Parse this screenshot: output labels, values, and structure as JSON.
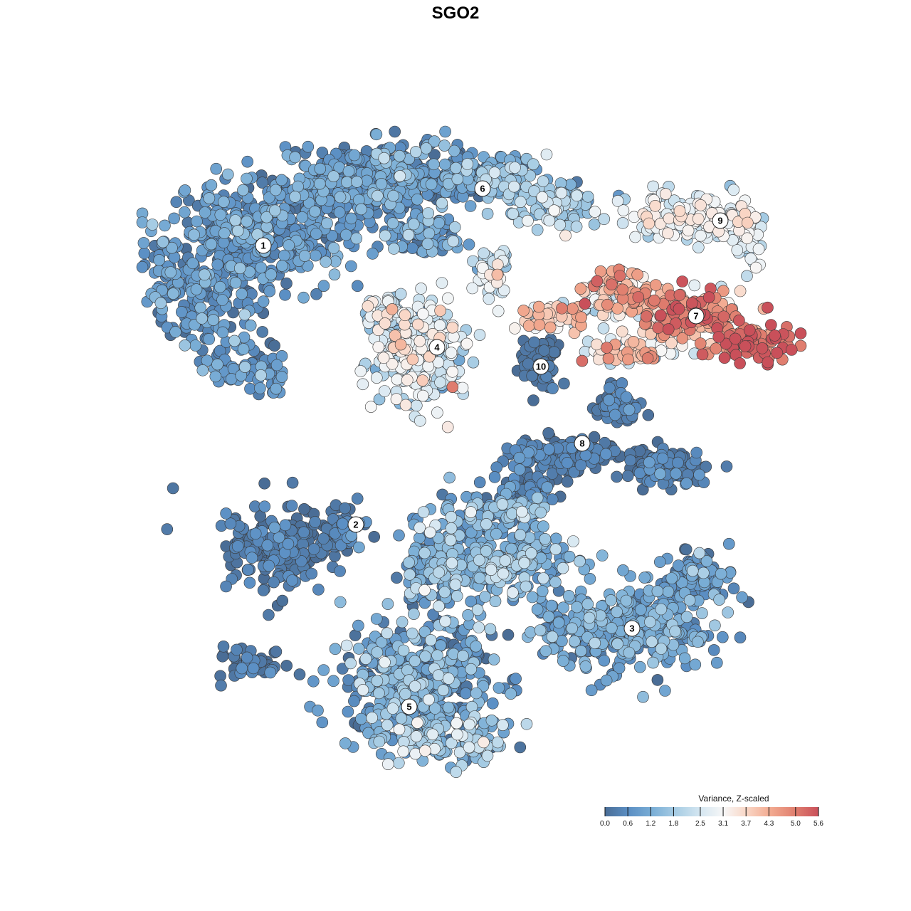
{
  "chart_data": {
    "type": "scatter",
    "title": "SGO2",
    "xlabel": "",
    "ylabel": "",
    "color_scale": {
      "title": "Variance, Z-scaled",
      "min": 0.0,
      "max": 5.6,
      "ticks": [
        0.0,
        0.6,
        1.2,
        1.8,
        2.5,
        3.1,
        3.7,
        4.3,
        5.0,
        5.6
      ],
      "tick_labels": [
        "0.0",
        "0.6",
        "1.2",
        "1.8",
        "2.5",
        "3.1",
        "3.7",
        "4.3",
        "5.0",
        "5.6"
      ],
      "colors": [
        "#4a6d96",
        "#5b8fc4",
        "#7aaed6",
        "#a8cde4",
        "#d4e6f1",
        "#f7f7f7",
        "#f9d5c4",
        "#f2a98f",
        "#e07f6f",
        "#c9505a"
      ]
    },
    "clusters": [
      {
        "label": "1",
        "center": [
          370,
          345
        ],
        "mean_value": 0.7,
        "spread_value": 0.45
      },
      {
        "label": "2",
        "center": [
          500,
          737
        ],
        "mean_value": 0.2,
        "spread_value": 0.3
      },
      {
        "label": "3",
        "center": [
          888,
          883
        ],
        "mean_value": 0.8,
        "spread_value": 0.5
      },
      {
        "label": "4",
        "center": [
          614,
          488
        ],
        "mean_value": 2.4,
        "spread_value": 0.7
      },
      {
        "label": "5",
        "center": [
          575,
          993
        ],
        "mean_value": 0.9,
        "spread_value": 0.7
      },
      {
        "label": "6",
        "center": [
          678,
          265
        ],
        "mean_value": 0.8,
        "spread_value": 0.6
      },
      {
        "label": "7",
        "center": [
          978,
          444
        ],
        "mean_value": 3.9,
        "spread_value": 0.9
      },
      {
        "label": "8",
        "center": [
          818,
          623
        ],
        "mean_value": 0.2,
        "spread_value": 0.3
      },
      {
        "label": "9",
        "center": [
          1012,
          310
        ],
        "mean_value": 2.7,
        "spread_value": 0.5
      },
      {
        "label": "10",
        "center": [
          760,
          515
        ],
        "mean_value": 0.1,
        "spread_value": 0.15
      }
    ],
    "legend_position": "bottom-right",
    "grid": false
  }
}
